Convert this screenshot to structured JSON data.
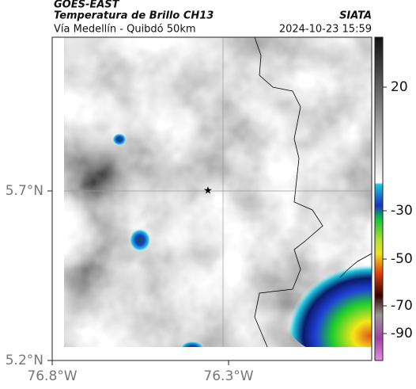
{
  "header": {
    "satellite": "GOES-EAST",
    "product": "Temperatura de Brillo CH13",
    "region": "Vía Medellín - Quibdó 50km",
    "agency": "SIATA",
    "timestamp": "2024-10-23 15:59"
  },
  "map": {
    "lat_ticks": [
      "5.7°N",
      "5.2°N"
    ],
    "lon_ticks": [
      "76.8°W",
      "76.3°W"
    ]
  },
  "colorbar": {
    "ticks": [
      20,
      -30,
      -50,
      -70,
      -90
    ]
  }
}
